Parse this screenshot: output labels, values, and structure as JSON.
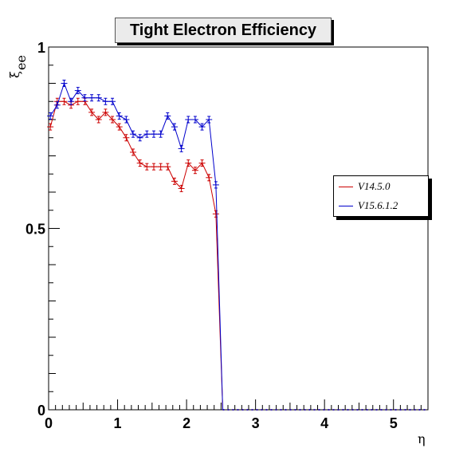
{
  "chart_data": {
    "type": "line",
    "title": "Tight Electron Efficiency",
    "xlabel": "η",
    "ylabel": "ξ",
    "ylabel_sub": "ee",
    "xlim": [
      0,
      5.5
    ],
    "ylim": [
      0,
      1
    ],
    "x_ticks": [
      "0",
      "1",
      "2",
      "3",
      "4",
      "5"
    ],
    "x_tick_values": [
      0,
      1,
      2,
      3,
      4,
      5
    ],
    "y_ticks": [
      "0",
      "0.5",
      "1"
    ],
    "y_tick_values": [
      0,
      0.5,
      1
    ],
    "grid": false,
    "legend_position": "right",
    "x": [
      0.025,
      0.125,
      0.225,
      0.325,
      0.425,
      0.525,
      0.625,
      0.725,
      0.825,
      0.925,
      1.025,
      1.125,
      1.225,
      1.325,
      1.425,
      1.525,
      1.625,
      1.725,
      1.825,
      1.925,
      2.025,
      2.125,
      2.225,
      2.325,
      2.425,
      2.525
    ],
    "series": [
      {
        "name": "V14.5.0",
        "color": "#cc0000",
        "values": [
          0.78,
          0.85,
          0.85,
          0.84,
          0.85,
          0.85,
          0.82,
          0.8,
          0.82,
          0.8,
          0.78,
          0.75,
          0.71,
          0.68,
          0.67,
          0.67,
          0.67,
          0.67,
          0.63,
          0.61,
          0.68,
          0.66,
          0.68,
          0.64,
          0.54,
          0.0
        ]
      },
      {
        "name": "V15.6.1.2",
        "color": "#0000cc",
        "values": [
          0.81,
          0.84,
          0.9,
          0.85,
          0.88,
          0.86,
          0.86,
          0.86,
          0.85,
          0.85,
          0.81,
          0.8,
          0.76,
          0.75,
          0.76,
          0.76,
          0.76,
          0.81,
          0.78,
          0.72,
          0.8,
          0.8,
          0.78,
          0.8,
          0.62,
          0.0
        ]
      }
    ],
    "tail_x_end": 5.5
  }
}
